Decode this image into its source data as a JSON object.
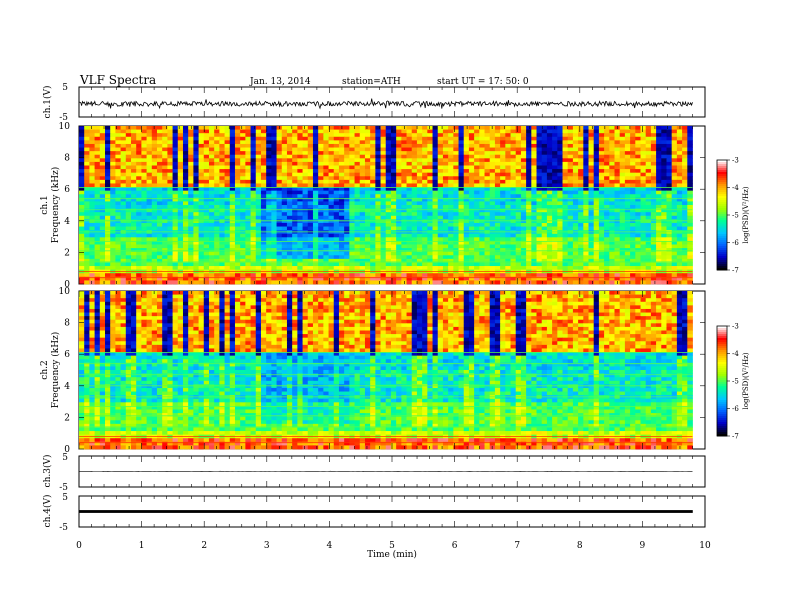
{
  "header": {
    "title": "VLF Spectra",
    "date": "Jan. 13, 2014",
    "station": "station=ATH",
    "start": "start  UT =   17: 50: 0"
  },
  "chart_data": [
    {
      "type": "line",
      "panel": "ch1",
      "ylabel": "ch.1(V)",
      "ylim": [
        -5,
        5
      ],
      "yticks": [
        "5",
        "-5"
      ],
      "xlim": [
        0,
        10
      ],
      "series": [
        {
          "values_hint": "noisy waveform, mean about -0.6 V, amplitude about +/-0.8 V",
          "mean": -0.6,
          "amplitude": 0.8
        }
      ]
    },
    {
      "type": "heatmap",
      "panel": "ch1-spectrogram",
      "ylabel_channel": "ch.1",
      "ylabel": "Frequency  (kHz)",
      "ylim": [
        0,
        10
      ],
      "yticks": [
        "0",
        "2",
        "4",
        "6",
        "8",
        "10"
      ],
      "xlim": [
        0,
        10
      ],
      "data_end_min": 9.8,
      "colorbar": {
        "label": "log(PSD)(V²/Hz)",
        "range": [
          -7,
          -3
        ],
        "ticks": [
          "-3",
          "-4",
          "-5",
          "-6",
          "-7"
        ],
        "colors": [
          "#000000",
          "#0000c8",
          "#0064ff",
          "#00c8ff",
          "#00ff96",
          "#a0ff00",
          "#ffff00",
          "#ff9600",
          "#ff0000",
          "#ffffff"
        ]
      }
    },
    {
      "type": "heatmap",
      "panel": "ch2-spectrogram",
      "ylabel_channel": "ch.2",
      "ylabel": "Frequency  (kHz)",
      "ylim": [
        0,
        10
      ],
      "yticks": [
        "0",
        "2",
        "4",
        "6",
        "8",
        "10"
      ],
      "xlim": [
        0,
        10
      ],
      "data_end_min": 9.8,
      "colorbar": {
        "label": "log(PSD)(V²/Hz)",
        "range": [
          -7,
          -3
        ],
        "ticks": [
          "-3",
          "-4",
          "-5",
          "-6",
          "-7"
        ]
      }
    },
    {
      "type": "line",
      "panel": "ch3",
      "ylabel": "ch.3(V)",
      "ylim": [
        -5,
        5
      ],
      "yticks": [
        "5",
        "-5"
      ],
      "xlim": [
        0,
        10
      ],
      "series": [
        {
          "values_hint": "nearly flat line near 0 V",
          "mean": 0.0,
          "amplitude": 0.05
        }
      ]
    },
    {
      "type": "line",
      "panel": "ch4",
      "ylabel": "ch.4(V)",
      "ylim": [
        -5,
        5
      ],
      "yticks": [
        "5",
        "-5"
      ],
      "xlim": [
        0,
        10
      ],
      "xlabel": "Time  (min)",
      "xticks": [
        "0",
        "1",
        "2",
        "3",
        "4",
        "5",
        "6",
        "7",
        "8",
        "9",
        "10"
      ],
      "series": [
        {
          "values_hint": "thick flat band near 0 V",
          "mean": 0.0,
          "amplitude": 0.35
        }
      ]
    }
  ]
}
